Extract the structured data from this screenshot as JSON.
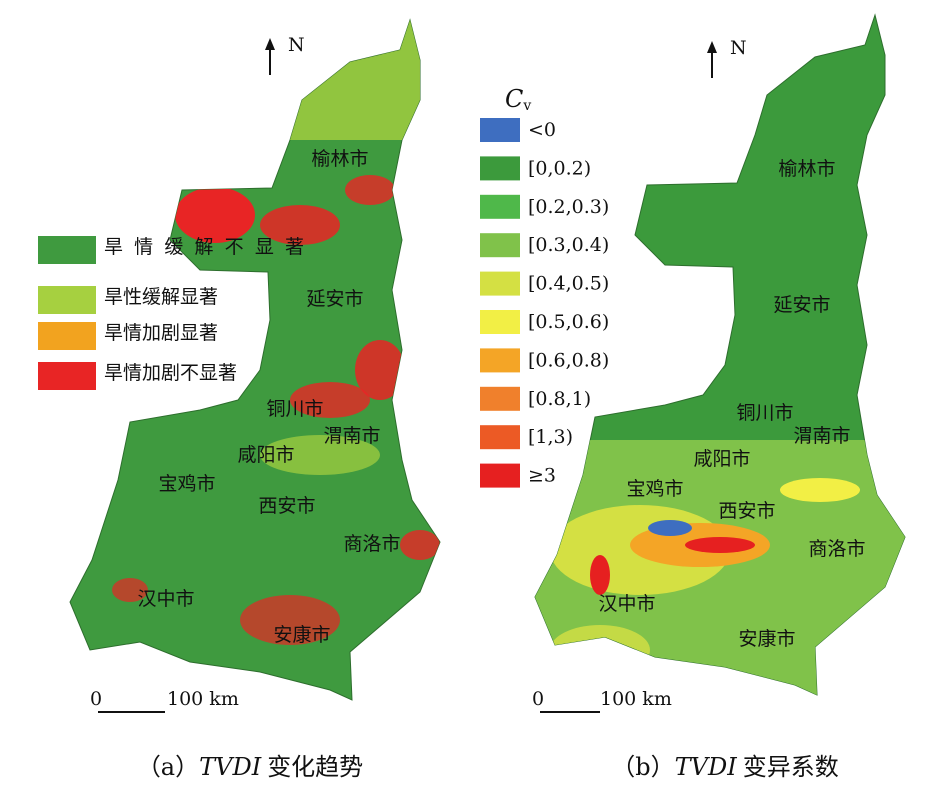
{
  "panel_a": {
    "north": "N",
    "legend": [
      {
        "label": "旱情缓解不显著",
        "color": "#3f9a3f"
      },
      {
        "label": "旱性缓解显著",
        "color": "#a6d040"
      },
      {
        "label": "旱情加剧显著",
        "color": "#f2a31f"
      },
      {
        "label": "旱情加剧不显著",
        "color": "#e82525"
      }
    ],
    "cities": [
      "榆林市",
      "延安市",
      "铜川市",
      "渭南市",
      "咸阳市",
      "宝鸡市",
      "西安市",
      "商洛市",
      "汉中市",
      "安康市"
    ],
    "scale": {
      "start": "0",
      "end": "100 km"
    },
    "caption": {
      "index": "（a）",
      "term": "TVDI",
      "text": "变化趋势"
    }
  },
  "panel_b": {
    "north": "N",
    "legend_title": {
      "symbol": "C",
      "subscript": "v"
    },
    "legend": [
      {
        "label": "<0",
        "color": "#3e6ec0"
      },
      {
        "label": "[0,0.2)",
        "color": "#3c9a3c"
      },
      {
        "label": "[0.2,0.3)",
        "color": "#4fb84a"
      },
      {
        "label": "[0.3,0.4)",
        "color": "#80c24a"
      },
      {
        "label": "[0.4,0.5)",
        "color": "#d4e043"
      },
      {
        "label": "[0.5,0.6)",
        "color": "#f2ef45"
      },
      {
        "label": "[0.6,0.8)",
        "color": "#f4a526"
      },
      {
        "label": "[0.8,1)",
        "color": "#f0802c"
      },
      {
        "label": "[1,3)",
        "color": "#ec5a25"
      },
      {
        "label": "≥3",
        "color": "#e62020"
      }
    ],
    "cities": [
      "榆林市",
      "延安市",
      "铜川市",
      "渭南市",
      "咸阳市",
      "宝鸡市",
      "西安市",
      "商洛市",
      "汉中市",
      "安康市"
    ],
    "scale": {
      "start": "0",
      "end": "100 km"
    },
    "caption": {
      "index": "（b）",
      "term": "TVDI",
      "text": "变异系数"
    }
  }
}
